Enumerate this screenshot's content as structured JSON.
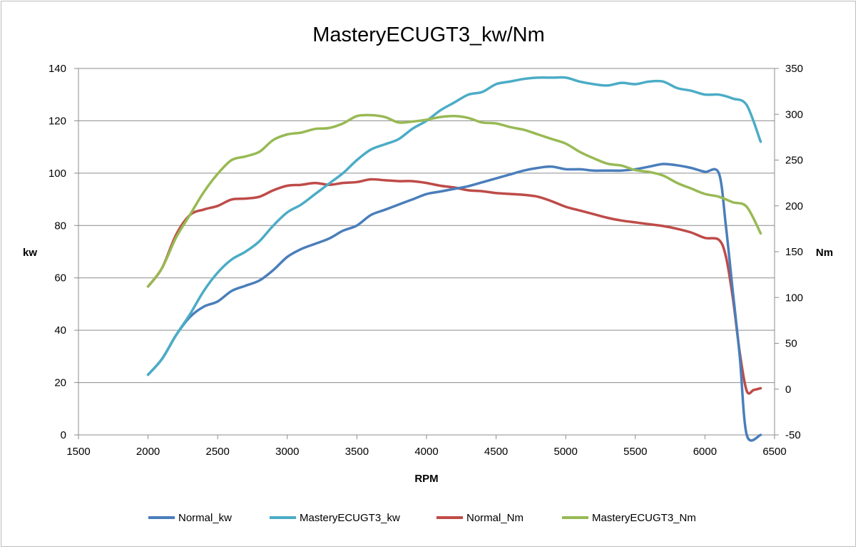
{
  "chart_data": {
    "type": "line",
    "title": "MasteryECUGT3_kw/Nm",
    "xlabel": "RPM",
    "ylabel": "kw",
    "y2label": "Nm",
    "xlim": [
      1500,
      6500
    ],
    "ylim": [
      0,
      140
    ],
    "y2lim": [
      -50,
      350
    ],
    "xticks": [
      "1500",
      "2000",
      "2500",
      "3000",
      "3500",
      "4000",
      "4500",
      "5000",
      "5500",
      "6000",
      "6500"
    ],
    "yticks": [
      "0",
      "20",
      "40",
      "60",
      "80",
      "100",
      "120",
      "140"
    ],
    "y2ticks": [
      "-50",
      "0",
      "50",
      "100",
      "150",
      "200",
      "250",
      "300",
      "350"
    ],
    "grid": "horizontal",
    "legend": "bottom",
    "series": [
      {
        "name": "Normal_kw",
        "axis": "left",
        "color": "#4a7ebb",
        "points": [
          [
            2000,
            23
          ],
          [
            2100,
            29
          ],
          [
            2200,
            38
          ],
          [
            2300,
            45
          ],
          [
            2400,
            49
          ],
          [
            2500,
            51
          ],
          [
            2600,
            55
          ],
          [
            2700,
            57
          ],
          [
            2800,
            59
          ],
          [
            2900,
            63
          ],
          [
            3000,
            68
          ],
          [
            3100,
            71
          ],
          [
            3200,
            73
          ],
          [
            3300,
            75
          ],
          [
            3400,
            78
          ],
          [
            3500,
            80
          ],
          [
            3600,
            84
          ],
          [
            3700,
            86
          ],
          [
            3800,
            88
          ],
          [
            3900,
            90
          ],
          [
            4000,
            92
          ],
          [
            4100,
            93
          ],
          [
            4200,
            94
          ],
          [
            4300,
            95
          ],
          [
            4400,
            96.5
          ],
          [
            4500,
            98
          ],
          [
            4600,
            99.5
          ],
          [
            4700,
            101
          ],
          [
            4800,
            102
          ],
          [
            4900,
            102.5
          ],
          [
            5000,
            101.5
          ],
          [
            5100,
            101.5
          ],
          [
            5200,
            101
          ],
          [
            5300,
            101
          ],
          [
            5400,
            101
          ],
          [
            5500,
            101.5
          ],
          [
            5600,
            102.5
          ],
          [
            5700,
            103.5
          ],
          [
            5800,
            103
          ],
          [
            5900,
            102
          ],
          [
            6000,
            100.5
          ],
          [
            6100,
            100
          ],
          [
            6150,
            80
          ],
          [
            6200,
            55
          ],
          [
            6250,
            30
          ],
          [
            6300,
            0
          ],
          [
            6400,
            0
          ]
        ]
      },
      {
        "name": "MasteryECUGT3_kw",
        "axis": "left",
        "color": "#4bacc6",
        "points": [
          [
            2000,
            23
          ],
          [
            2100,
            29
          ],
          [
            2200,
            38
          ],
          [
            2300,
            46
          ],
          [
            2400,
            55
          ],
          [
            2500,
            62
          ],
          [
            2600,
            67
          ],
          [
            2700,
            70
          ],
          [
            2800,
            74
          ],
          [
            2900,
            80
          ],
          [
            3000,
            85
          ],
          [
            3100,
            88
          ],
          [
            3200,
            92
          ],
          [
            3300,
            96
          ],
          [
            3400,
            100
          ],
          [
            3500,
            105
          ],
          [
            3600,
            109
          ],
          [
            3700,
            111
          ],
          [
            3800,
            113
          ],
          [
            3900,
            117
          ],
          [
            4000,
            120
          ],
          [
            4100,
            124
          ],
          [
            4200,
            127
          ],
          [
            4300,
            130
          ],
          [
            4400,
            131
          ],
          [
            4500,
            134
          ],
          [
            4600,
            135
          ],
          [
            4700,
            136
          ],
          [
            4800,
            136.5
          ],
          [
            4900,
            136.5
          ],
          [
            5000,
            136.5
          ],
          [
            5100,
            135
          ],
          [
            5200,
            134
          ],
          [
            5300,
            133.5
          ],
          [
            5400,
            134.5
          ],
          [
            5500,
            134
          ],
          [
            5600,
            135
          ],
          [
            5700,
            135
          ],
          [
            5800,
            132.5
          ],
          [
            5900,
            131.5
          ],
          [
            6000,
            130
          ],
          [
            6100,
            130
          ],
          [
            6200,
            128.5
          ],
          [
            6300,
            126
          ],
          [
            6400,
            112
          ]
        ]
      },
      {
        "name": "Normal_Nm",
        "axis": "right",
        "color": "#be4b48",
        "points": [
          [
            2000,
            112
          ],
          [
            2100,
            132
          ],
          [
            2200,
            168
          ],
          [
            2300,
            190
          ],
          [
            2400,
            196
          ],
          [
            2500,
            200
          ],
          [
            2600,
            207
          ],
          [
            2700,
            208
          ],
          [
            2800,
            210
          ],
          [
            2900,
            217
          ],
          [
            3000,
            222
          ],
          [
            3100,
            223
          ],
          [
            3200,
            225
          ],
          [
            3300,
            223
          ],
          [
            3400,
            225
          ],
          [
            3500,
            226
          ],
          [
            3600,
            229
          ],
          [
            3700,
            228
          ],
          [
            3800,
            227
          ],
          [
            3900,
            227
          ],
          [
            4000,
            225
          ],
          [
            4100,
            222
          ],
          [
            4200,
            220
          ],
          [
            4300,
            217
          ],
          [
            4400,
            216
          ],
          [
            4500,
            214
          ],
          [
            4600,
            213
          ],
          [
            4700,
            212
          ],
          [
            4800,
            210
          ],
          [
            4900,
            205
          ],
          [
            5000,
            199
          ],
          [
            5100,
            195
          ],
          [
            5200,
            191
          ],
          [
            5300,
            187
          ],
          [
            5400,
            184
          ],
          [
            5500,
            182
          ],
          [
            5600,
            180
          ],
          [
            5700,
            178
          ],
          [
            5800,
            175
          ],
          [
            5900,
            171
          ],
          [
            6000,
            165
          ],
          [
            6100,
            163
          ],
          [
            6150,
            145
          ],
          [
            6200,
            100
          ],
          [
            6250,
            40
          ],
          [
            6300,
            -2
          ],
          [
            6350,
            -1
          ],
          [
            6400,
            1
          ]
        ]
      },
      {
        "name": "MasteryECUGT3_Nm",
        "axis": "right",
        "color": "#98b954",
        "points": [
          [
            2000,
            112
          ],
          [
            2100,
            132
          ],
          [
            2200,
            165
          ],
          [
            2300,
            190
          ],
          [
            2400,
            215
          ],
          [
            2500,
            235
          ],
          [
            2600,
            250
          ],
          [
            2700,
            254
          ],
          [
            2800,
            259
          ],
          [
            2900,
            272
          ],
          [
            3000,
            278
          ],
          [
            3100,
            280
          ],
          [
            3200,
            284
          ],
          [
            3300,
            285
          ],
          [
            3400,
            290
          ],
          [
            3500,
            298
          ],
          [
            3600,
            299
          ],
          [
            3700,
            297
          ],
          [
            3800,
            291
          ],
          [
            3900,
            292
          ],
          [
            4000,
            294
          ],
          [
            4100,
            297
          ],
          [
            4200,
            298
          ],
          [
            4300,
            296
          ],
          [
            4400,
            291
          ],
          [
            4500,
            290
          ],
          [
            4600,
            286
          ],
          [
            4700,
            283
          ],
          [
            4800,
            278
          ],
          [
            4900,
            273
          ],
          [
            5000,
            268
          ],
          [
            5100,
            259
          ],
          [
            5200,
            252
          ],
          [
            5300,
            246
          ],
          [
            5400,
            244
          ],
          [
            5500,
            239
          ],
          [
            5600,
            237
          ],
          [
            5700,
            233
          ],
          [
            5800,
            225
          ],
          [
            5900,
            219
          ],
          [
            6000,
            213
          ],
          [
            6100,
            210
          ],
          [
            6200,
            204
          ],
          [
            6300,
            199
          ],
          [
            6400,
            170
          ]
        ]
      }
    ]
  }
}
